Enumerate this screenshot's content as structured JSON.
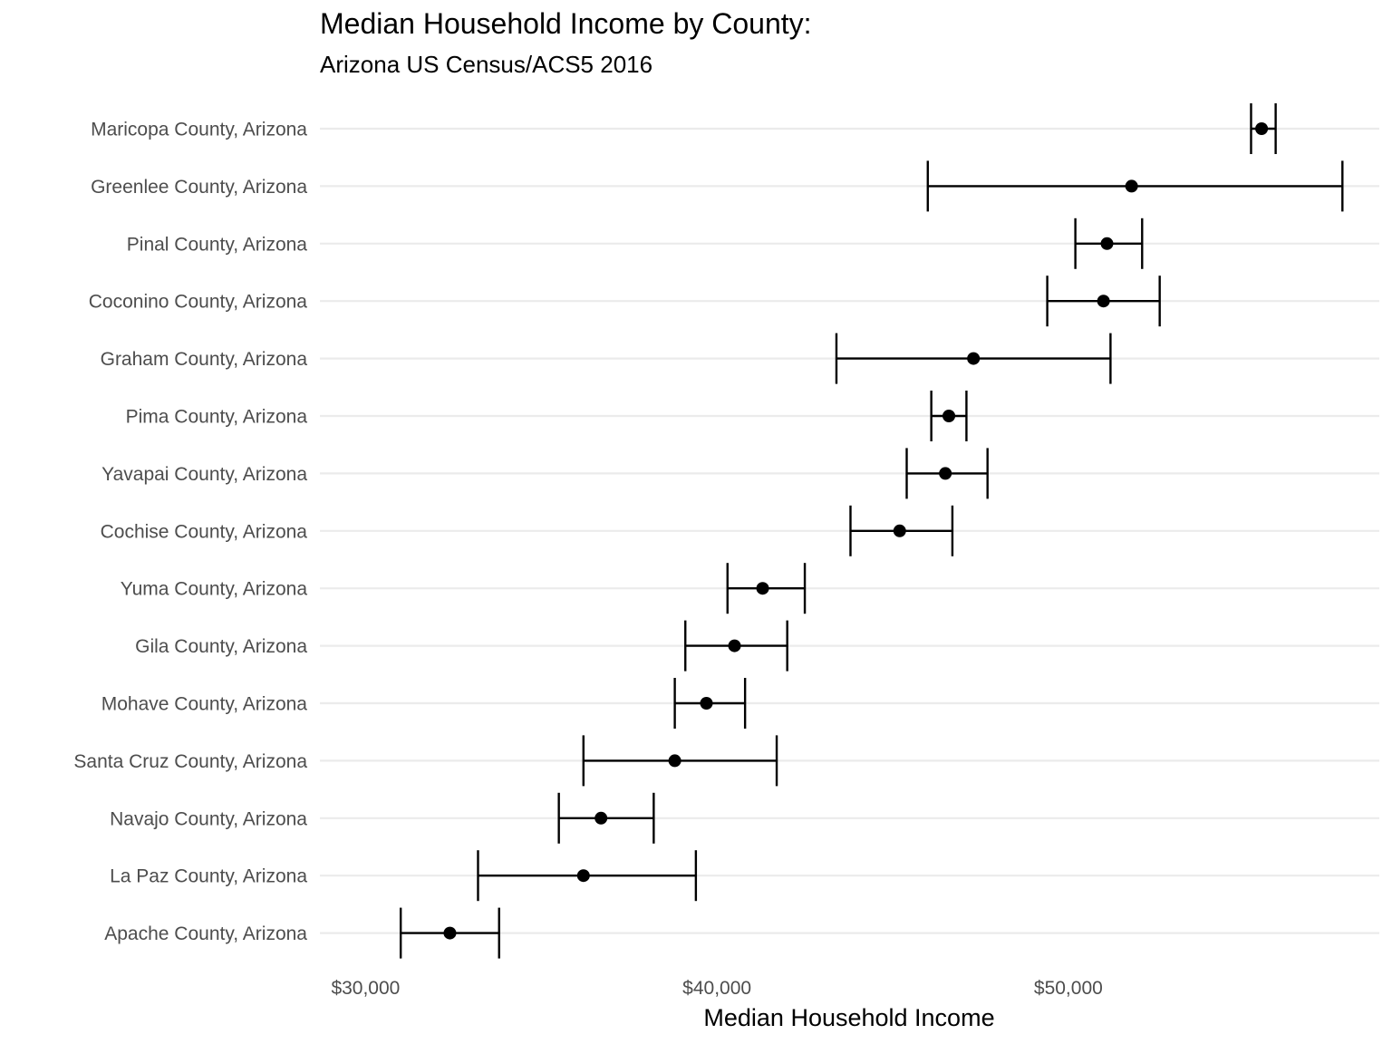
{
  "chart_data": {
    "type": "scatter",
    "title": "Median Household Income by County:",
    "subtitle": "Arizona US Census/ACS5 2016",
    "xlabel": "Median Household Income",
    "ylabel": "",
    "xlim": [
      28700,
      58850
    ],
    "x_ticks": [
      30000,
      40000,
      50000
    ],
    "x_tick_labels": [
      "$30,000",
      "$40,000",
      "$50,000"
    ],
    "grid": "horizontal-major",
    "colors": {
      "points": "#000000",
      "grid": "#ebebeb",
      "text": "#4d4d4d"
    },
    "categories": [
      "Maricopa County, Arizona",
      "Greenlee County, Arizona",
      "Pinal County, Arizona",
      "Coconino County, Arizona",
      "Graham County, Arizona",
      "Pima County, Arizona",
      "Yavapai County, Arizona",
      "Cochise County, Arizona",
      "Yuma County, Arizona",
      "Gila County, Arizona",
      "Mohave County, Arizona",
      "Santa Cruz County, Arizona",
      "Navajo County, Arizona",
      "La Paz County, Arizona",
      "Apache County, Arizona"
    ],
    "estimate": [
      55500,
      51800,
      51100,
      51000,
      47300,
      46600,
      46500,
      45200,
      41300,
      40500,
      39700,
      38800,
      36700,
      36200,
      32400
    ],
    "lower": [
      55200,
      46000,
      50200,
      49400,
      43400,
      46100,
      45400,
      43800,
      40300,
      39100,
      38800,
      36200,
      35500,
      33200,
      31000
    ],
    "upper": [
      55900,
      57800,
      52100,
      52600,
      51200,
      47100,
      47700,
      46700,
      42500,
      42000,
      40800,
      41700,
      38200,
      39400,
      33800
    ]
  }
}
